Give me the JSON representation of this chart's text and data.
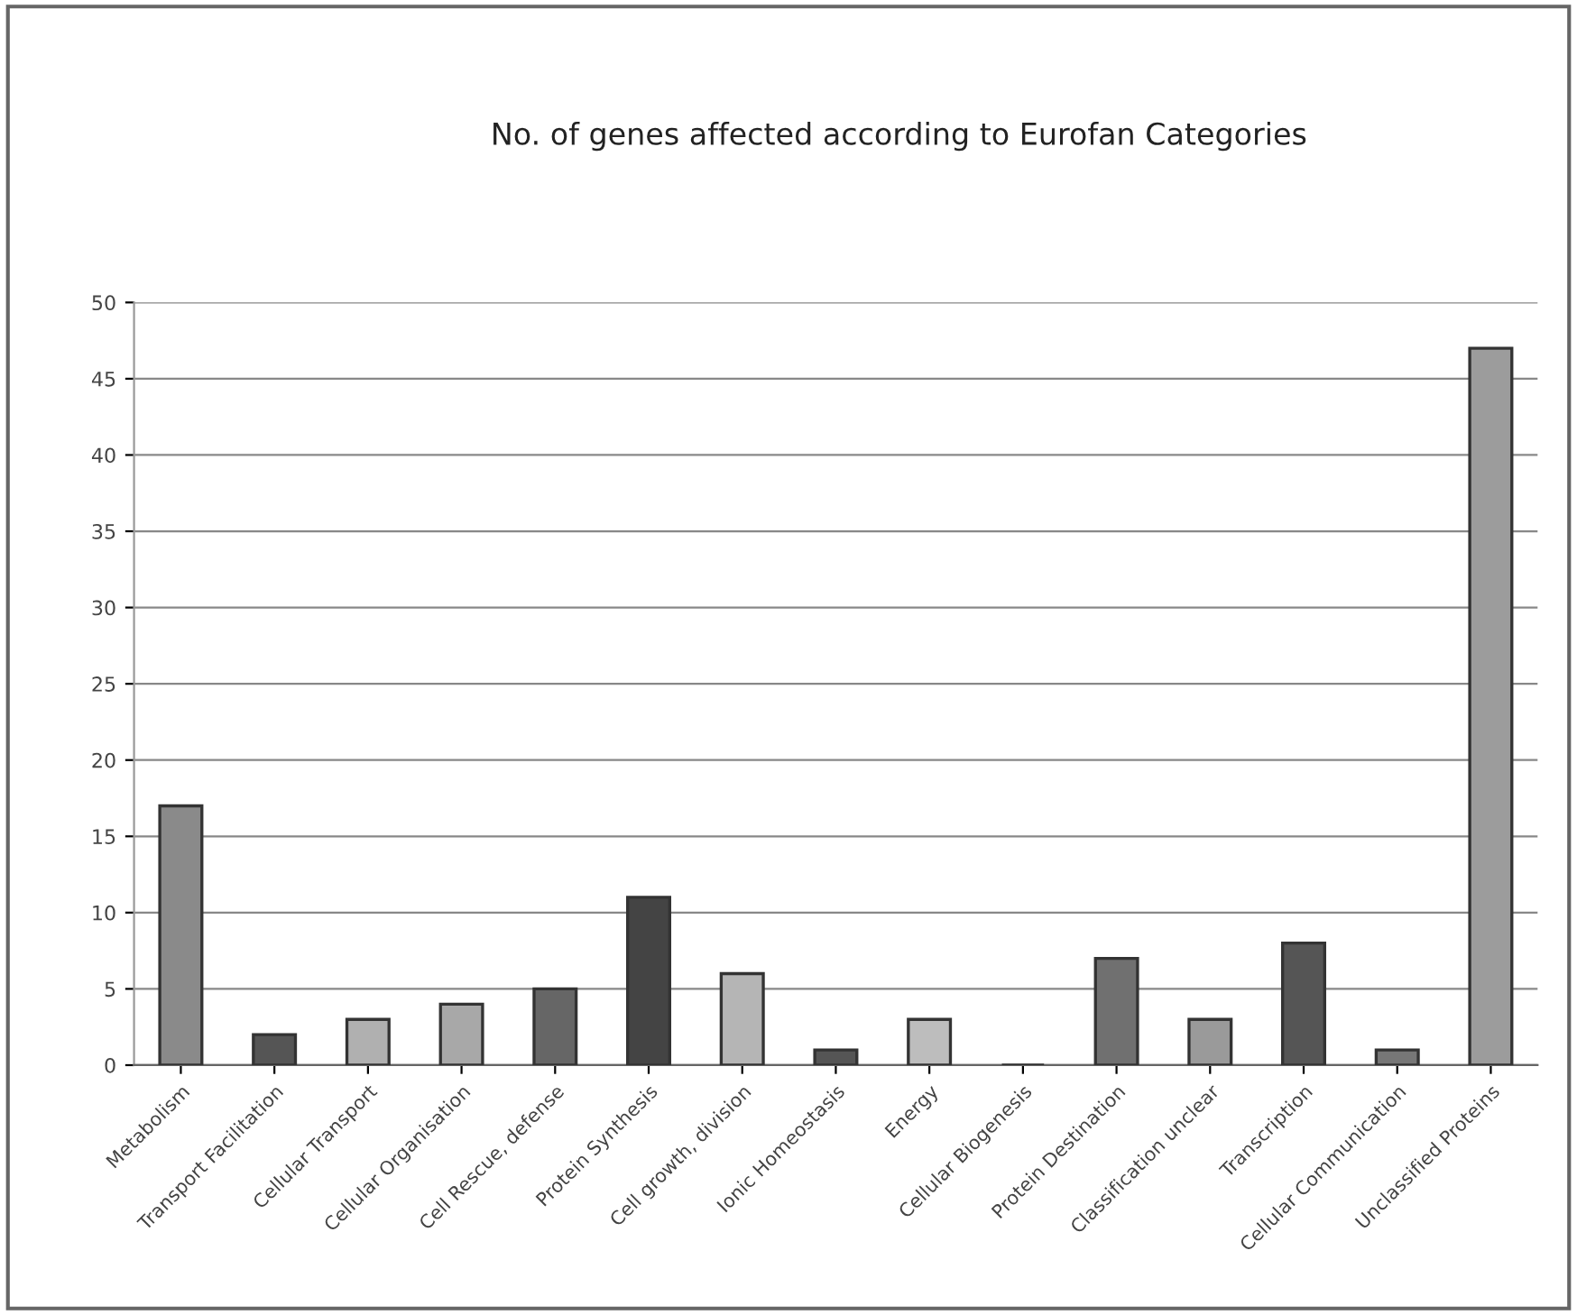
{
  "chart_data": {
    "type": "bar",
    "title": "No. of genes affected according to Eurofan Categories",
    "categories": [
      "Metabolism",
      "Transport Facilitation",
      "Cellular Transport",
      "Cellular Organisation",
      "Cell Rescue, defense",
      "Protein Synthesis",
      "Cell growth, division",
      "Ionic Homeostasis",
      "Energy",
      "Cellular Biogenesis",
      "Protein Destination",
      "Classification unclear",
      "Transcription",
      "Cellular Communication",
      "Unclassified Proteins"
    ],
    "values": [
      17,
      2,
      3,
      4,
      5,
      11,
      6,
      1,
      3,
      0,
      7,
      3,
      8,
      1,
      47
    ],
    "colors": [
      "#8a8a8a",
      "#555555",
      "#b0b0b0",
      "#a8a8a8",
      "#666666",
      "#444444",
      "#b5b5b5",
      "#555555",
      "#bdbdbd",
      "#333333",
      "#707070",
      "#9a9a9a",
      "#555555",
      "#777777",
      "#9c9c9c"
    ],
    "ylim": [
      0,
      50
    ],
    "yticks": [
      0,
      5,
      10,
      15,
      20,
      25,
      30,
      35,
      40,
      45,
      50
    ],
    "grid": "y"
  }
}
